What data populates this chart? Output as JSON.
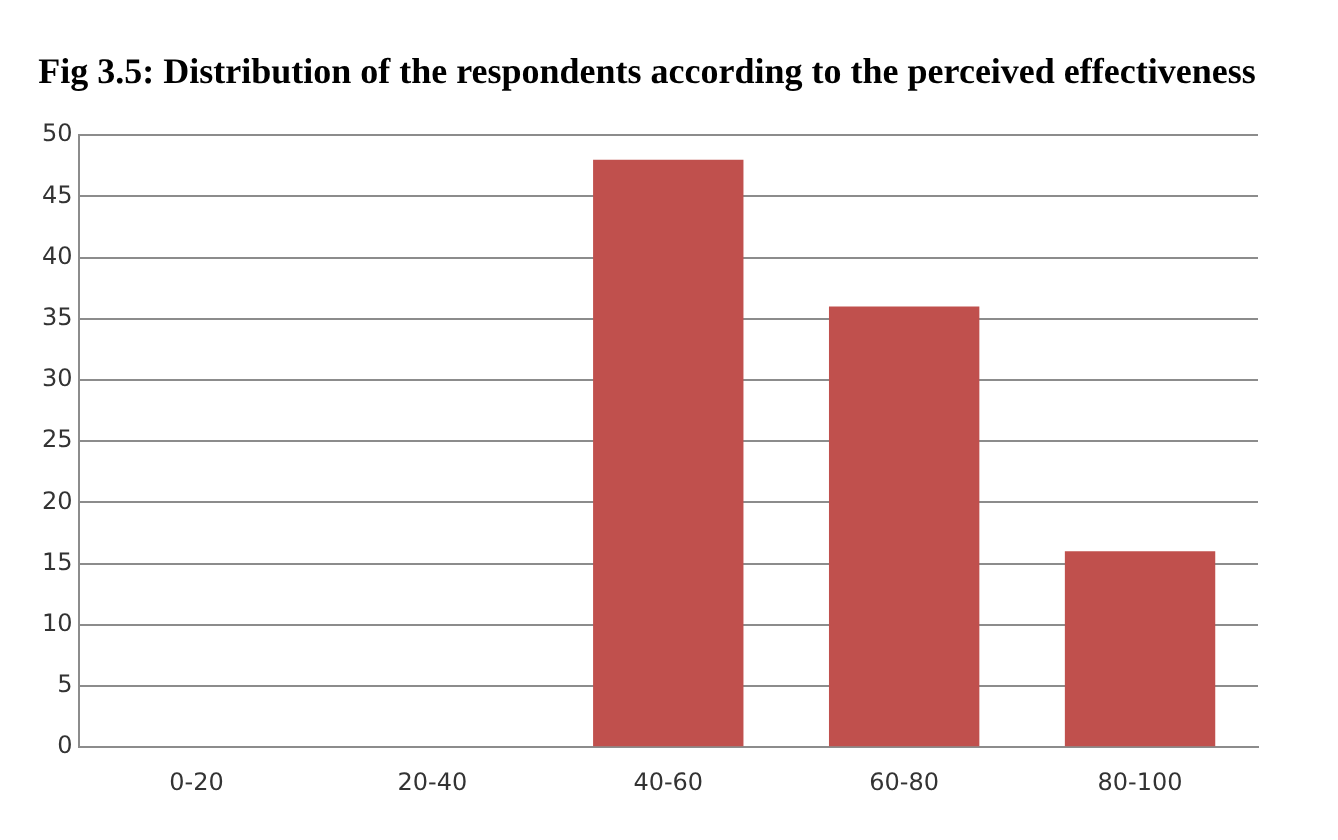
{
  "chart_data": {
    "type": "bar",
    "title": "Fig 3.5: Distribution of the respondents according to the perceived effectiveness",
    "categories": [
      "0-20",
      "20-40",
      "40-60",
      "60-80",
      "80-100"
    ],
    "values": [
      0,
      0,
      48,
      36,
      16
    ],
    "color": "#c0504d",
    "ylim": [
      0,
      50
    ],
    "yticks": [
      0,
      5,
      10,
      15,
      20,
      25,
      30,
      35,
      40,
      45,
      50
    ],
    "grid": "y",
    "legend": false
  }
}
